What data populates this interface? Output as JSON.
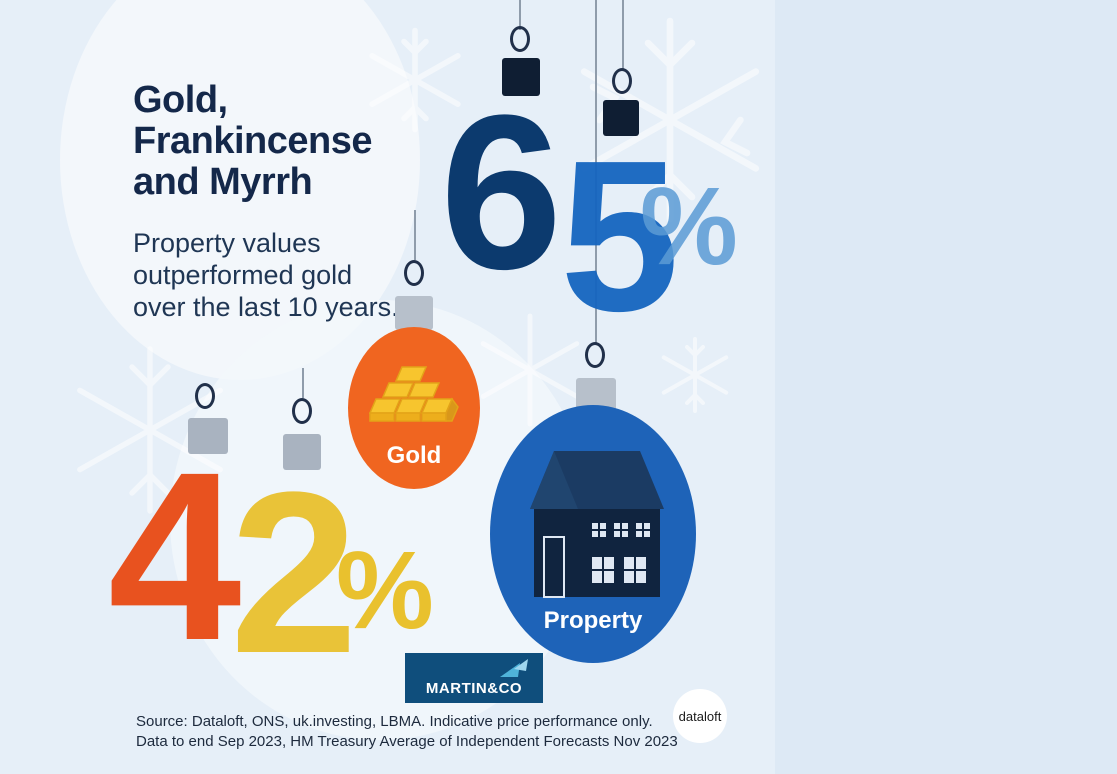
{
  "title": "Gold, Frankincense and Myrrh",
  "subtitle": "Property values outperformed gold over the last 10 years.",
  "figures": {
    "property_value": "65",
    "property_unit": "%",
    "gold_value": "42",
    "gold_unit": "%"
  },
  "baubles": {
    "gold_label": "Gold",
    "property_label": "Property"
  },
  "logo": {
    "brand": "MARTIN&CO"
  },
  "badge": {
    "text": "dataloft"
  },
  "source": {
    "line1": "Source: Dataloft, ONS, uk.investing, LBMA. Indicative price performance only.",
    "line2": "Data to end Sep 2023, HM Treasury Average of Independent Forecasts Nov 2023"
  },
  "colors": {
    "dark_blue": "#0c3a6e",
    "mid_blue": "#1565c0",
    "light_blue": "#5b9bd5",
    "orange": "#e8521f",
    "yellow": "#e9c12e",
    "ball_orange": "#f06520",
    "ball_blue": "#1e63b8"
  }
}
